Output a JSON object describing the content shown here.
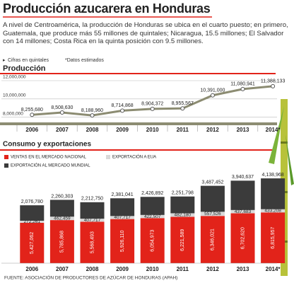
{
  "title": "Producción azucarera en Honduras",
  "intro": "A nivel de Centroamérica, la producción de Honduras se ubica en el cuarto puesto; en primero, Guatemala, que produce más 55 millones de quintales; Nicaragua, 15.5 millones; El Salvador con 14 millones; Costa Rica en la quinta posición con 9.5 millones.",
  "notes": [
    "Cifras en quintales",
    "*Datos estimados"
  ],
  "source": "FUENTE:  ASOCIACIÓN DE PRODUCTORES DE AZÚCAR DE HONDURAS (APAH)",
  "chart_data": [
    {
      "type": "line",
      "title": "Producción",
      "categories": [
        "2006",
        "2007",
        "2008",
        "2009",
        "2010",
        "2011",
        "2012",
        "2013",
        "2014*"
      ],
      "values": [
        8255680,
        8508630,
        8188960,
        8714868,
        8904372,
        8955567,
        10391000,
        11080941,
        11388133
      ],
      "value_labels": [
        "8,255,680",
        "8,508,630",
        "8,188,960",
        "8,714,868",
        "8,904,372",
        "8,955,567",
        "10,391,000",
        "11,080,941",
        "11,388,133"
      ],
      "color": "#8c8c72",
      "ylim": [
        7500000,
        12000000
      ],
      "yticks": [
        {
          "value": 8000000,
          "label": "8,000,000"
        },
        {
          "value": 10000000,
          "label": "10,000,000"
        },
        {
          "value": 12000000,
          "label": "12,000,000"
        }
      ],
      "grid": true
    },
    {
      "type": "stacked_bar",
      "title": "Consumo y exportaciones",
      "categories": [
        "2006",
        "2007",
        "2008",
        "2009",
        "2010",
        "2011",
        "2012",
        "2013",
        "2014*"
      ],
      "ylim": [
        0,
        11400000
      ],
      "series": [
        {
          "name": "VENTAS EN EL MERCADO NACIONAL",
          "color": "#e2231a",
          "values": [
            5427062,
            5785868,
            5568493,
            5926110,
            6054973,
            6221589,
            6346021,
            6702620,
            6815957
          ],
          "value_labels": [
            "5,427,062",
            "5,785,868",
            "5,568,493",
            "5,926,110",
            "6,054,973",
            "6,221,589",
            "6,346,021",
            "6,702,620",
            "6,815,957"
          ]
        },
        {
          "name": "EXPORTACIÓN A EUA",
          "color": "#d9d9d9",
          "values": [
            272261,
            462459,
            407717,
            407717,
            422507,
            482180,
            557526,
            437683,
            433208
          ],
          "value_labels": [
            "272,261",
            "462,459",
            "407,717",
            "407,717",
            "422,507",
            "482,180",
            "557,526",
            "437,683",
            "433,208"
          ]
        },
        {
          "name": "EXPORTACIÓN AL MERCADO MUNDIAL",
          "color": "#3b3b3b",
          "values": [
            2076780,
            2260303,
            2212750,
            2381041,
            2426892,
            2251798,
            3487452,
            3940637,
            4138968
          ],
          "value_labels": [
            "2,076,780",
            "2,260,303",
            "2,212,750",
            "2,381,041",
            "2,426,892",
            "2,251,798",
            "3,487,452",
            "3,940,637",
            "4,138,968"
          ]
        }
      ]
    }
  ]
}
